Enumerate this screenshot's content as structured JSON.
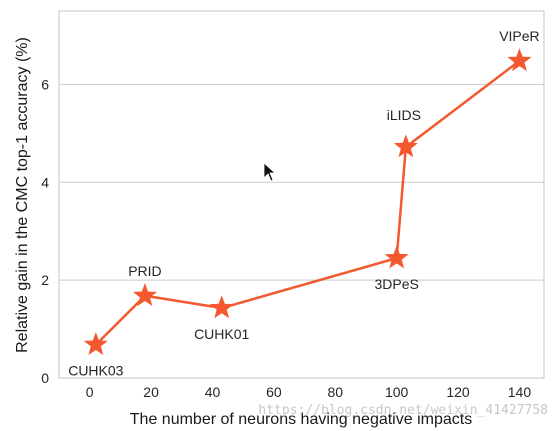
{
  "chart_data": {
    "type": "line",
    "xlabel": "The number of neurons having negative impacts",
    "ylabel": "Relative gain in the CMC top-1 accuracy (%)",
    "xlim": [
      -10,
      148
    ],
    "ylim": [
      0,
      7.5
    ],
    "xticks": [
      0,
      20,
      40,
      60,
      80,
      100,
      120,
      140
    ],
    "yticks": [
      0,
      2,
      4,
      6
    ],
    "grid": "horizontal",
    "series": [
      {
        "color": "#f4582f",
        "marker": "star",
        "points": [
          {
            "x": 2,
            "y": 0.68,
            "label": "CUHK03",
            "label_pos": "below"
          },
          {
            "x": 18,
            "y": 1.68,
            "label": "PRID",
            "label_pos": "above"
          },
          {
            "x": 43,
            "y": 1.43,
            "label": "CUHK01",
            "label_pos": "below"
          },
          {
            "x": 100,
            "y": 2.45,
            "label": "3DPeS",
            "label_pos": "below"
          },
          {
            "x": 103,
            "y": 4.72,
            "label": "iLIDS",
            "label_pos": "above-left"
          },
          {
            "x": 140,
            "y": 6.48,
            "label": "VIPeR",
            "label_pos": "above"
          }
        ]
      }
    ]
  },
  "watermark": "https://blog.csdn.net/weixin_41427758"
}
